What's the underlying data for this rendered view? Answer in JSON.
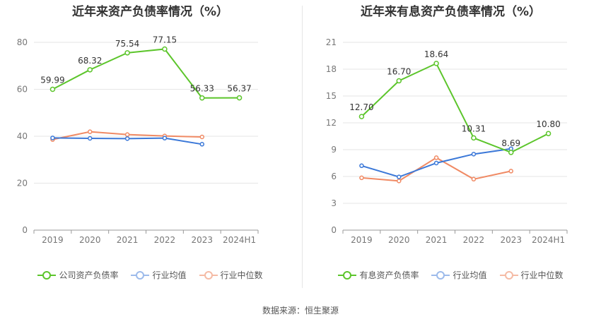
{
  "source_label": "数据来源：恒生聚源",
  "chart_data": [
    {
      "type": "line",
      "title": "近年来资产负债率情况（%）",
      "categories": [
        "2019",
        "2020",
        "2021",
        "2022",
        "2023",
        "2024H1"
      ],
      "ylim": [
        0,
        80
      ],
      "yticks": [
        0,
        20,
        40,
        60,
        80
      ],
      "grid": true,
      "legend_position": "bottom",
      "series": [
        {
          "name": "公司资产负债率",
          "color": "#5cc52b",
          "values": [
            59.99,
            68.32,
            75.54,
            77.15,
            56.33,
            56.37
          ],
          "labels": [
            "59.99",
            "68.32",
            "75.54",
            "77.15",
            "56.33",
            "56.37"
          ]
        },
        {
          "name": "行业均值",
          "color": "#3b78d8",
          "values": [
            39.3,
            39.1,
            39.0,
            39.2,
            36.6,
            null
          ],
          "labels": null
        },
        {
          "name": "行业中位数",
          "color": "#f08a64",
          "values": [
            38.6,
            41.9,
            40.7,
            40.1,
            39.7,
            null
          ],
          "labels": null
        }
      ]
    },
    {
      "type": "line",
      "title": "近年来有息资产负债率情况（%）",
      "categories": [
        "2019",
        "2020",
        "2021",
        "2022",
        "2023",
        "2024H1"
      ],
      "ylim": [
        0,
        21
      ],
      "yticks": [
        0,
        3,
        6,
        9,
        12,
        15,
        18,
        21
      ],
      "grid": true,
      "legend_position": "bottom",
      "series": [
        {
          "name": "有息资产负债率",
          "color": "#5cc52b",
          "values": [
            12.7,
            16.7,
            18.64,
            10.31,
            8.69,
            10.8
          ],
          "labels": [
            "12.70",
            "16.70",
            "18.64",
            "10.31",
            "8.69",
            "10.80"
          ]
        },
        {
          "name": "行业均值",
          "color": "#3b78d8",
          "values": [
            7.2,
            5.95,
            7.5,
            8.5,
            9.1,
            null
          ],
          "labels": null
        },
        {
          "name": "行业中位数",
          "color": "#f08a64",
          "values": [
            5.85,
            5.5,
            8.1,
            5.7,
            6.6,
            null
          ],
          "labels": null
        }
      ]
    }
  ]
}
